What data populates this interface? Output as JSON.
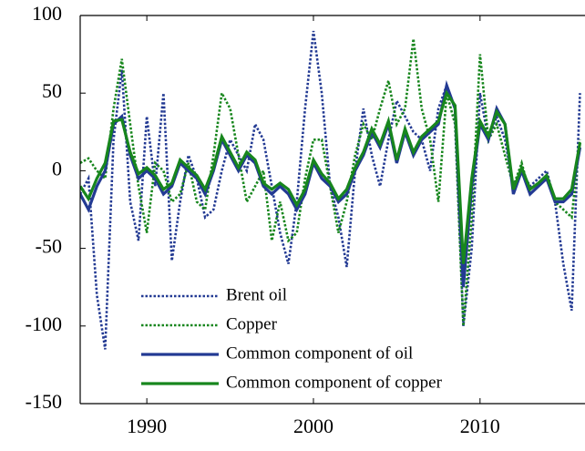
{
  "chart_data": {
    "type": "line",
    "x": [
      1986,
      1986.5,
      1987,
      1987.5,
      1988,
      1988.5,
      1989,
      1989.5,
      1990,
      1990.5,
      1991,
      1991.5,
      1992,
      1992.5,
      1993,
      1993.5,
      1994,
      1994.5,
      1995,
      1995.5,
      1996,
      1996.5,
      1997,
      1997.5,
      1998,
      1998.5,
      1999,
      1999.5,
      2000,
      2000.5,
      2001,
      2001.5,
      2002,
      2002.5,
      2003,
      2003.5,
      2004,
      2004.5,
      2005,
      2005.5,
      2006,
      2006.5,
      2007,
      2007.5,
      2008,
      2008.5,
      2009,
      2009.5,
      2010,
      2010.5,
      2011,
      2011.5,
      2012,
      2012.5,
      2013,
      2013.5,
      2014,
      2014.5,
      2015,
      2015.5,
      2016
    ],
    "series": [
      {
        "name": "Brent oil",
        "color": "#233a93",
        "style": "dotted",
        "values": [
          -15,
          -5,
          -80,
          -115,
          20,
          65,
          -20,
          -45,
          35,
          -10,
          50,
          -58,
          -20,
          10,
          -5,
          -30,
          -25,
          0,
          20,
          10,
          0,
          30,
          20,
          -10,
          -40,
          -60,
          -20,
          40,
          90,
          50,
          -10,
          -30,
          -62,
          0,
          40,
          10,
          -10,
          20,
          45,
          35,
          25,
          20,
          0,
          40,
          55,
          40,
          -100,
          -50,
          50,
          20,
          35,
          20,
          -10,
          0,
          -10,
          -5,
          0,
          -20,
          -60,
          -90,
          50
        ]
      },
      {
        "name": "Copper",
        "color": "#17861d",
        "style": "dotted",
        "values": [
          5,
          8,
          0,
          -5,
          40,
          72,
          30,
          -10,
          -40,
          5,
          0,
          -20,
          -15,
          5,
          -20,
          -25,
          10,
          50,
          40,
          10,
          -20,
          -10,
          0,
          -45,
          -20,
          -45,
          -40,
          -5,
          20,
          20,
          -10,
          -40,
          -20,
          10,
          30,
          20,
          40,
          58,
          30,
          40,
          85,
          40,
          20,
          -20,
          50,
          30,
          -100,
          -30,
          75,
          20,
          30,
          10,
          -10,
          5,
          -15,
          -10,
          -5,
          -20,
          -25,
          -30,
          20
        ]
      },
      {
        "name": "Common component of oil",
        "color": "#233a93",
        "style": "solid",
        "values": [
          -15,
          -25,
          -10,
          0,
          30,
          35,
          10,
          -5,
          0,
          -5,
          -15,
          -10,
          5,
          0,
          -5,
          -15,
          0,
          20,
          10,
          0,
          10,
          5,
          -10,
          -15,
          -10,
          -15,
          -25,
          -15,
          5,
          -5,
          -10,
          -20,
          -15,
          0,
          10,
          25,
          15,
          30,
          5,
          25,
          10,
          20,
          25,
          30,
          55,
          40,
          -75,
          -10,
          30,
          20,
          40,
          30,
          -15,
          0,
          -15,
          -10,
          -5,
          -20,
          -20,
          -15,
          15
        ]
      },
      {
        "name": "Common component of copper",
        "color": "#17861d",
        "style": "solid",
        "values": [
          -10,
          -18,
          -5,
          5,
          32,
          33,
          12,
          -2,
          2,
          -3,
          -12,
          -8,
          7,
          2,
          -3,
          -12,
          2,
          22,
          12,
          2,
          12,
          7,
          -8,
          -12,
          -8,
          -12,
          -22,
          -12,
          7,
          -2,
          -8,
          -18,
          -12,
          2,
          12,
          27,
          17,
          32,
          7,
          27,
          12,
          22,
          27,
          32,
          50,
          42,
          -60,
          -5,
          32,
          22,
          38,
          30,
          -12,
          2,
          -12,
          -8,
          -3,
          -18,
          -18,
          -12,
          18
        ]
      }
    ],
    "xlim": [
      1986,
      2016.3
    ],
    "xticks": [
      1990,
      2000,
      2010
    ],
    "ylim": [
      -150,
      100
    ],
    "yticks": [
      -150,
      -100,
      -50,
      0,
      50,
      100
    ],
    "legend": "lower left"
  }
}
